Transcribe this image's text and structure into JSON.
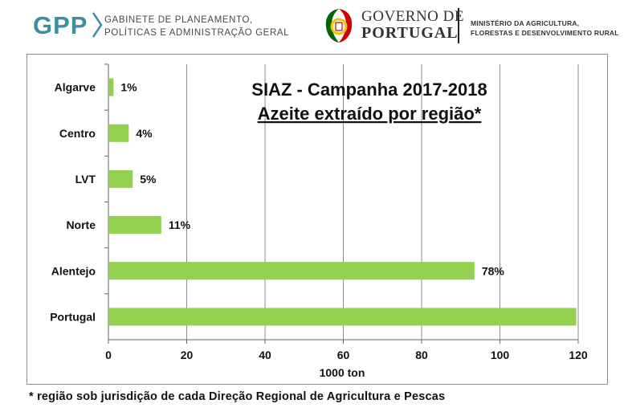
{
  "header": {
    "gpp_logo": "GPP",
    "gpp_line1": "GABINETE DE PLANEAMENTO,",
    "gpp_line2": "POLÍTICAS E ADMINISTRAÇÃO GERAL",
    "gov_line1": "GOVERNO DE",
    "gov_line2": "PORTUGAL",
    "ministry_line1": "MINISTÉRIO DA AGRICULTURA,",
    "ministry_line2": "FLORESTAS E DESENVOLVIMENTO RURAL"
  },
  "colors": {
    "bar": "#92d050",
    "gpp_teal": "#3b8fa1",
    "gridline": "#8c8c8c",
    "emblem_green": "#006600",
    "emblem_red": "#cc0000",
    "emblem_yellow": "#f2c200"
  },
  "chart_data": {
    "type": "bar",
    "orientation": "horizontal",
    "title": "SIAZ - Campanha 2017-2018",
    "subtitle": "Azeite extraído por região*",
    "xlabel": "1000 ton",
    "ylabel": "",
    "xlim": [
      0,
      120
    ],
    "xticks": [
      "0",
      "20",
      "40",
      "60",
      "80",
      "100",
      "120"
    ],
    "categories": [
      "Algarve",
      "Centro",
      "LVT",
      "Norte",
      "Alentejo",
      "Portugal"
    ],
    "values": [
      1.3,
      5.2,
      6.2,
      13.5,
      93.5,
      119.5
    ],
    "data_labels": [
      "1%",
      "4%",
      "5%",
      "11%",
      "78%",
      ""
    ],
    "grid": "vertical",
    "legend": "none"
  },
  "footnote": "* região sob jurisdição de cada Direção Regional de Agricultura e Pescas"
}
